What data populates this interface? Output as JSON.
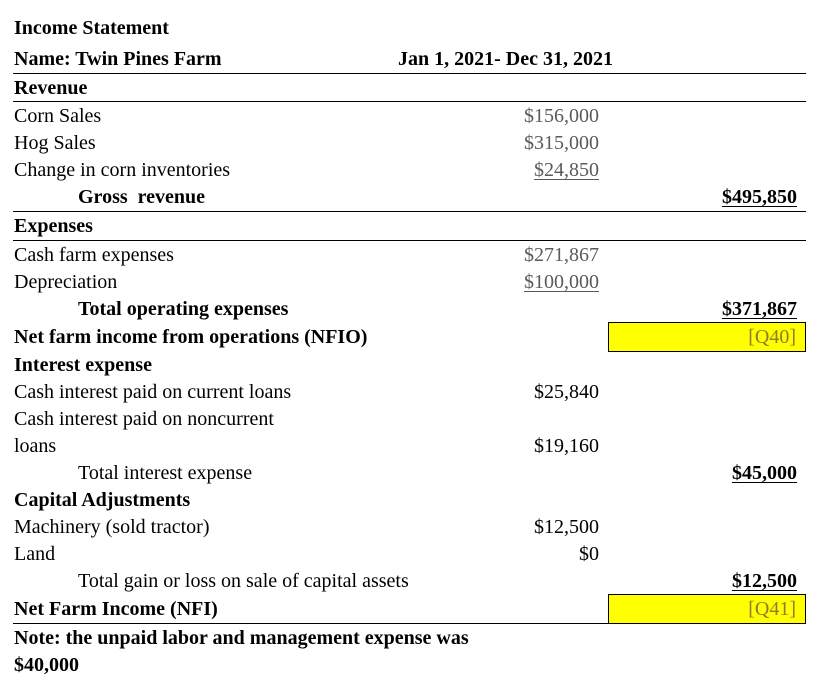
{
  "header": {
    "title": "Income Statement",
    "name": "Name: Twin Pines Farm",
    "period": "Jan 1, 2021- Dec 31, 2021"
  },
  "revenue": {
    "heading": "Revenue",
    "items": [
      {
        "label": "Corn Sales",
        "amount": "$156,000"
      },
      {
        "label": "Hog Sales",
        "amount": "$315,000"
      },
      {
        "label": "Change in corn inventories",
        "amount": "$24,850"
      }
    ],
    "total_label": "Gross  revenue",
    "total_amount": "$495,850"
  },
  "expenses": {
    "heading": "Expenses",
    "items": [
      {
        "label": "Cash farm expenses",
        "amount": "$271,867"
      },
      {
        "label": "Depreciation",
        "amount": "$100,000"
      }
    ],
    "total_label": "Total operating expenses",
    "total_amount": "$371,867"
  },
  "nfio": {
    "label": "Net farm income from operations (NFIO)",
    "answer": "[Q40]"
  },
  "interest": {
    "heading": "Interest expense",
    "current_label": "Cash interest paid on current loans",
    "current_amount": "$25,840",
    "noncurrent_label_1": "Cash interest paid on noncurrent",
    "noncurrent_label_2": "loans",
    "noncurrent_amount": "$19,160",
    "total_label": "Total interest expense",
    "total_amount": "$45,000"
  },
  "capital": {
    "heading": "Capital Adjustments",
    "items": [
      {
        "label": "Machinery (sold tractor)",
        "amount": "$12,500"
      },
      {
        "label": "Land",
        "amount": "$0"
      }
    ],
    "total_label": "Total gain or loss on sale of capital assets",
    "total_amount": "$12,500"
  },
  "nfi": {
    "label": "Net Farm Income (NFI)",
    "answer": "[Q41]"
  },
  "note": {
    "line1": "Note: the unpaid labor and management expense was",
    "line2": "$40,000"
  }
}
